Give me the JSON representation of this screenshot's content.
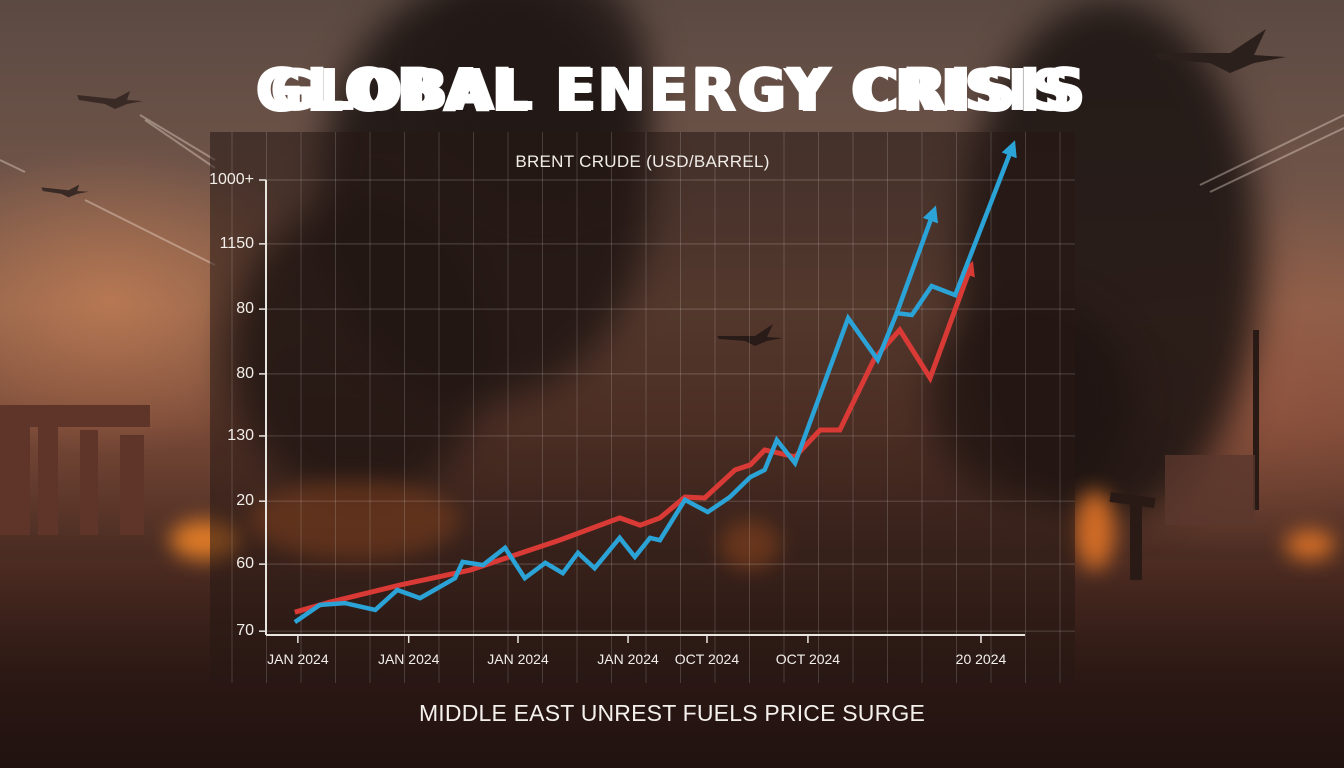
{
  "poster": {
    "title": "GLOBAL ENERGY CRISIS",
    "caption": "MIDDLE EAST UNREST FUELS PRICE SURGE"
  },
  "colors": {
    "series_red": "#d93a36",
    "series_blue": "#2ba3d6",
    "axis": "#e8e4e0",
    "grid": "rgba(255,255,255,0.16)",
    "panel": "rgba(38,24,20,0.55)"
  },
  "chart_data": {
    "type": "line",
    "title": "BRENT CRUDE (USD/BARREL)",
    "xlabel": "",
    "ylabel": "",
    "grid": true,
    "legend": null,
    "y_tick_labels": [
      "1000+",
      "1150",
      "80",
      "80",
      "130",
      "20",
      "60",
      "70"
    ],
    "y_tick_positions": [
      100,
      85.9,
      71.5,
      57.2,
      43.5,
      29.1,
      15.2,
      0.4
    ],
    "x_tick_labels": [
      "JAN 2024",
      "JAN 2024",
      "JAN 2024",
      "JAN 2024",
      "OCT 2024",
      "OCT 2024",
      "20 2024"
    ],
    "x_tick_positions": [
      4.2,
      18.8,
      33.2,
      47.7,
      58.1,
      71.4,
      94.2
    ],
    "xlim": [
      0,
      100
    ],
    "ylim": [
      0,
      100
    ],
    "note": "Axis tick labels are non-monotonic as printed; series values are expressed as normalized position (% of axis range) read from pixels.",
    "series": [
      {
        "name": "Red series",
        "color": "#d93a36",
        "arrow": true,
        "x": [
          3.8,
          8.4,
          17.7,
          26.9,
          38.7,
          46.6,
          49.3,
          51.9,
          55.2,
          57.8,
          61.8,
          63.8,
          65.7,
          69.7,
          73.0,
          75.6,
          80.2,
          83.5,
          87.5,
          92.8
        ],
        "y": [
          4.6,
          6.8,
          10.6,
          13.9,
          20.5,
          25.4,
          23.8,
          25.4,
          30.0,
          29.8,
          36.0,
          37.1,
          40.4,
          38.9,
          44.8,
          44.8,
          60.7,
          66.9,
          56.3,
          80.6
        ]
      },
      {
        "name": "Blue series",
        "color": "#2ba3d6",
        "arrow": true,
        "x": [
          3.8,
          7.1,
          10.4,
          14.4,
          17.3,
          20.3,
          24.9,
          25.9,
          28.6,
          31.5,
          34.1,
          36.8,
          39.1,
          41.1,
          43.3,
          46.6,
          48.6,
          50.6,
          51.9,
          55.2,
          58.2,
          61.1,
          63.8,
          65.7,
          67.3,
          69.7,
          76.7,
          80.6,
          83.1,
          85.1,
          87.7,
          90.8,
          98.3
        ],
        "y": [
          2.4,
          6.2,
          6.6,
          5.1,
          9.5,
          7.7,
          12.1,
          15.7,
          15.0,
          18.8,
          12.1,
          15.5,
          13.2,
          17.7,
          14.3,
          21.0,
          16.8,
          21.0,
          20.5,
          29.4,
          26.7,
          30.0,
          34.4,
          36.0,
          42.6,
          37.5,
          69.5,
          60.3,
          70.6,
          70.2,
          76.6,
          74.6,
          107.1
        ]
      },
      {
        "name": "Blue branch",
        "color": "#2ba3d6",
        "arrow": true,
        "x": [
          83.1,
          87.9
        ],
        "y": [
          70.6,
          92.7
        ]
      }
    ]
  }
}
